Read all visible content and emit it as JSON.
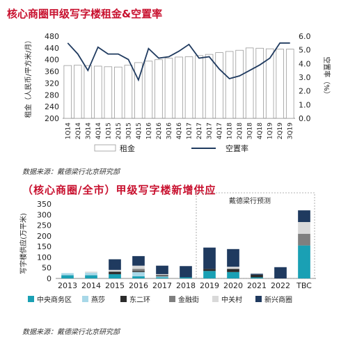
{
  "chart_data": [
    {
      "type": "bar+line",
      "title": "核心商圈甲级写字楼租金&空置率",
      "categories": [
        "1Q14",
        "2Q14",
        "3Q14",
        "4Q14",
        "1Q15",
        "2Q15",
        "3Q15",
        "4Q15",
        "1Q16",
        "2Q16",
        "3Q16",
        "4Q16",
        "1Q17",
        "2Q17",
        "3Q17",
        "4Q17",
        "1Q18",
        "2Q18",
        "3Q18",
        "4Q18",
        "1Q19",
        "2Q19",
        "3Q19"
      ],
      "series": [
        {
          "name": "租金",
          "type": "bar",
          "axis": "left",
          "values": [
            380,
            381,
            380,
            378,
            376,
            375,
            381,
            390,
            395,
            400,
            405,
            409,
            410,
            414,
            418,
            424,
            428,
            432,
            440,
            439,
            437,
            436,
            436
          ]
        },
        {
          "name": "空置率",
          "type": "line",
          "axis": "right",
          "values": [
            5.5,
            4.7,
            3.5,
            5.2,
            4.7,
            4.7,
            4.3,
            2.8,
            5.1,
            4.4,
            4.5,
            4.9,
            5.4,
            4.4,
            4.5,
            3.6,
            2.9,
            3.1,
            3.5,
            3.9,
            4.4,
            5.5,
            5.5
          ]
        }
      ],
      "ylabel": "租金（人民币/平方米/月）",
      "ylabel_right": "空置率（%）",
      "ylim": [
        200,
        480
      ],
      "yticks": [
        200,
        240,
        280,
        320,
        360,
        400,
        440,
        480
      ],
      "ylim_right": [
        0,
        6
      ],
      "yticks_right": [
        "0.0",
        "1.0",
        "2.0",
        "3.0",
        "4.0",
        "5.0",
        "6.0"
      ],
      "legend_position": "bottom"
    },
    {
      "type": "stacked-bar",
      "title": "（核心商圈/全市）甲级写字楼新增供应",
      "categories": [
        "2013",
        "2014",
        "2015",
        "2016",
        "2017",
        "2018",
        "2019",
        "2020",
        "2021",
        "2022",
        "TBC"
      ],
      "series": [
        {
          "name": "中央商务区",
          "color": "#1aa0b4",
          "values": [
            15,
            15,
            20,
            10,
            5,
            5,
            35,
            30,
            5,
            0,
            155
          ]
        },
        {
          "name": "燕莎",
          "color": "#a8d8e8",
          "values": [
            10,
            12,
            0,
            20,
            5,
            0,
            0,
            0,
            0,
            0,
            0
          ]
        },
        {
          "name": "东二环",
          "color": "#2b2b2b",
          "values": [
            0,
            0,
            12,
            5,
            5,
            0,
            10,
            15,
            12,
            0,
            0
          ]
        },
        {
          "name": "金融街",
          "color": "#7f7f7f",
          "values": [
            0,
            0,
            0,
            10,
            0,
            0,
            0,
            0,
            0,
            0,
            55
          ]
        },
        {
          "name": "中关村",
          "color": "#d9d9d9",
          "values": [
            0,
            5,
            8,
            15,
            5,
            0,
            0,
            10,
            0,
            0,
            55
          ]
        },
        {
          "name": "新兴商圈",
          "color": "#1f3a5f",
          "values": [
            0,
            0,
            50,
            45,
            40,
            53,
            100,
            83,
            5,
            53,
            55
          ]
        }
      ],
      "ylabel": "写字楼供应(万平米)",
      "ylim": [
        0,
        350
      ],
      "yticks": [
        0,
        50,
        100,
        150,
        200,
        250,
        300,
        350
      ],
      "annotation": "戴德梁行预测",
      "forecast_from": "2019",
      "legend_position": "bottom"
    }
  ],
  "source_1": "数据来源：戴德梁行北京研究部",
  "source_2": "数据来源：戴德梁行北京研究部"
}
